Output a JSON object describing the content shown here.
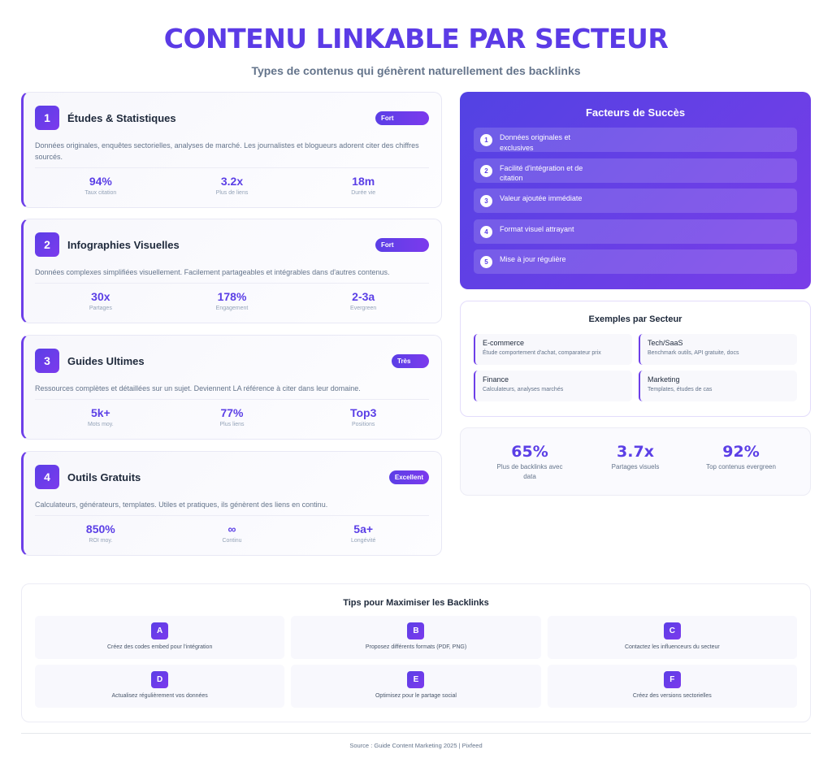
{
  "header": {
    "title": "CONTENU LINKABLE PAR SECTEUR",
    "subtitle": "Types de contenus qui génèrent naturellement des backlinks"
  },
  "content_types": [
    {
      "num": "1",
      "title": "Études & Statistiques",
      "badge": "Fort",
      "desc": "Données originales, enquêtes sectorielles, analyses de marché. Les journalistes et blogueurs adorent citer des chiffres sourcés.",
      "stats": [
        {
          "value": "94%",
          "label": "Taux citation"
        },
        {
          "value": "3.2x",
          "label": "Plus de liens"
        },
        {
          "value": "18m",
          "label": "Durée vie"
        }
      ]
    },
    {
      "num": "2",
      "title": "Infographies Visuelles",
      "badge": "Fort",
      "desc": "Données complexes simplifiées visuellement. Facilement partageables et intégrables dans d'autres contenus.",
      "stats": [
        {
          "value": "30x",
          "label": "Partages"
        },
        {
          "value": "178%",
          "label": "Engagement"
        },
        {
          "value": "2-3a",
          "label": "Evergreen"
        }
      ]
    },
    {
      "num": "3",
      "title": "Guides Ultimes",
      "badge": "Très",
      "desc": "Ressources complètes et détaillées sur un sujet. Deviennent LA référence à citer dans leur domaine.",
      "stats": [
        {
          "value": "5k+",
          "label": "Mots moy."
        },
        {
          "value": "77%",
          "label": "Plus liens"
        },
        {
          "value": "Top3",
          "label": "Positions"
        }
      ]
    },
    {
      "num": "4",
      "title": "Outils Gratuits",
      "badge": "Excellent",
      "desc": "Calculateurs, générateurs, templates. Utiles et pratiques, ils génèrent des liens en continu.",
      "stats": [
        {
          "value": "850%",
          "label": "ROI moy."
        },
        {
          "value": "∞",
          "label": "Continu"
        },
        {
          "value": "5a+",
          "label": "Longévité"
        }
      ]
    }
  ],
  "success_factors": {
    "title": "Facteurs de Succès",
    "items": [
      {
        "num": "1",
        "text": "Données originales et exclusives"
      },
      {
        "num": "2",
        "text": "Facilité d'intégration et de citation"
      },
      {
        "num": "3",
        "text": "Valeur ajoutée immédiate"
      },
      {
        "num": "4",
        "text": "Format visuel attrayant"
      },
      {
        "num": "5",
        "text": "Mise à jour régulière"
      }
    ]
  },
  "sector_examples": {
    "title": "Exemples par Secteur",
    "items": [
      {
        "name": "E-commerce",
        "desc": "Étude comportement d'achat, comparateur prix"
      },
      {
        "name": "Tech/SaaS",
        "desc": "Benchmark outils, API gratuite, docs"
      },
      {
        "name": "Finance",
        "desc": "Calculateurs, analyses marchés"
      },
      {
        "name": "Marketing",
        "desc": "Templates, études de cas"
      }
    ]
  },
  "key_stats": [
    {
      "value": "65%",
      "label": "Plus de backlinks avec data"
    },
    {
      "value": "3.7x",
      "label": "Partages visuels"
    },
    {
      "value": "92%",
      "label": "Top contenus evergreen"
    }
  ],
  "tips": {
    "title": "Tips pour Maximiser les Backlinks",
    "items": [
      {
        "letter": "A",
        "text": "Créez des codes embed pour l'intégration"
      },
      {
        "letter": "B",
        "text": "Proposez différents formats (PDF, PNG)"
      },
      {
        "letter": "C",
        "text": "Contactez les influenceurs du secteur"
      },
      {
        "letter": "D",
        "text": "Actualisez régulièrement vos données"
      },
      {
        "letter": "E",
        "text": "Optimisez pour le partage social"
      },
      {
        "letter": "F",
        "text": "Créez des versions sectorielles"
      }
    ]
  },
  "footer": "Source : Guide Content Marketing 2025 | Pixfeed"
}
